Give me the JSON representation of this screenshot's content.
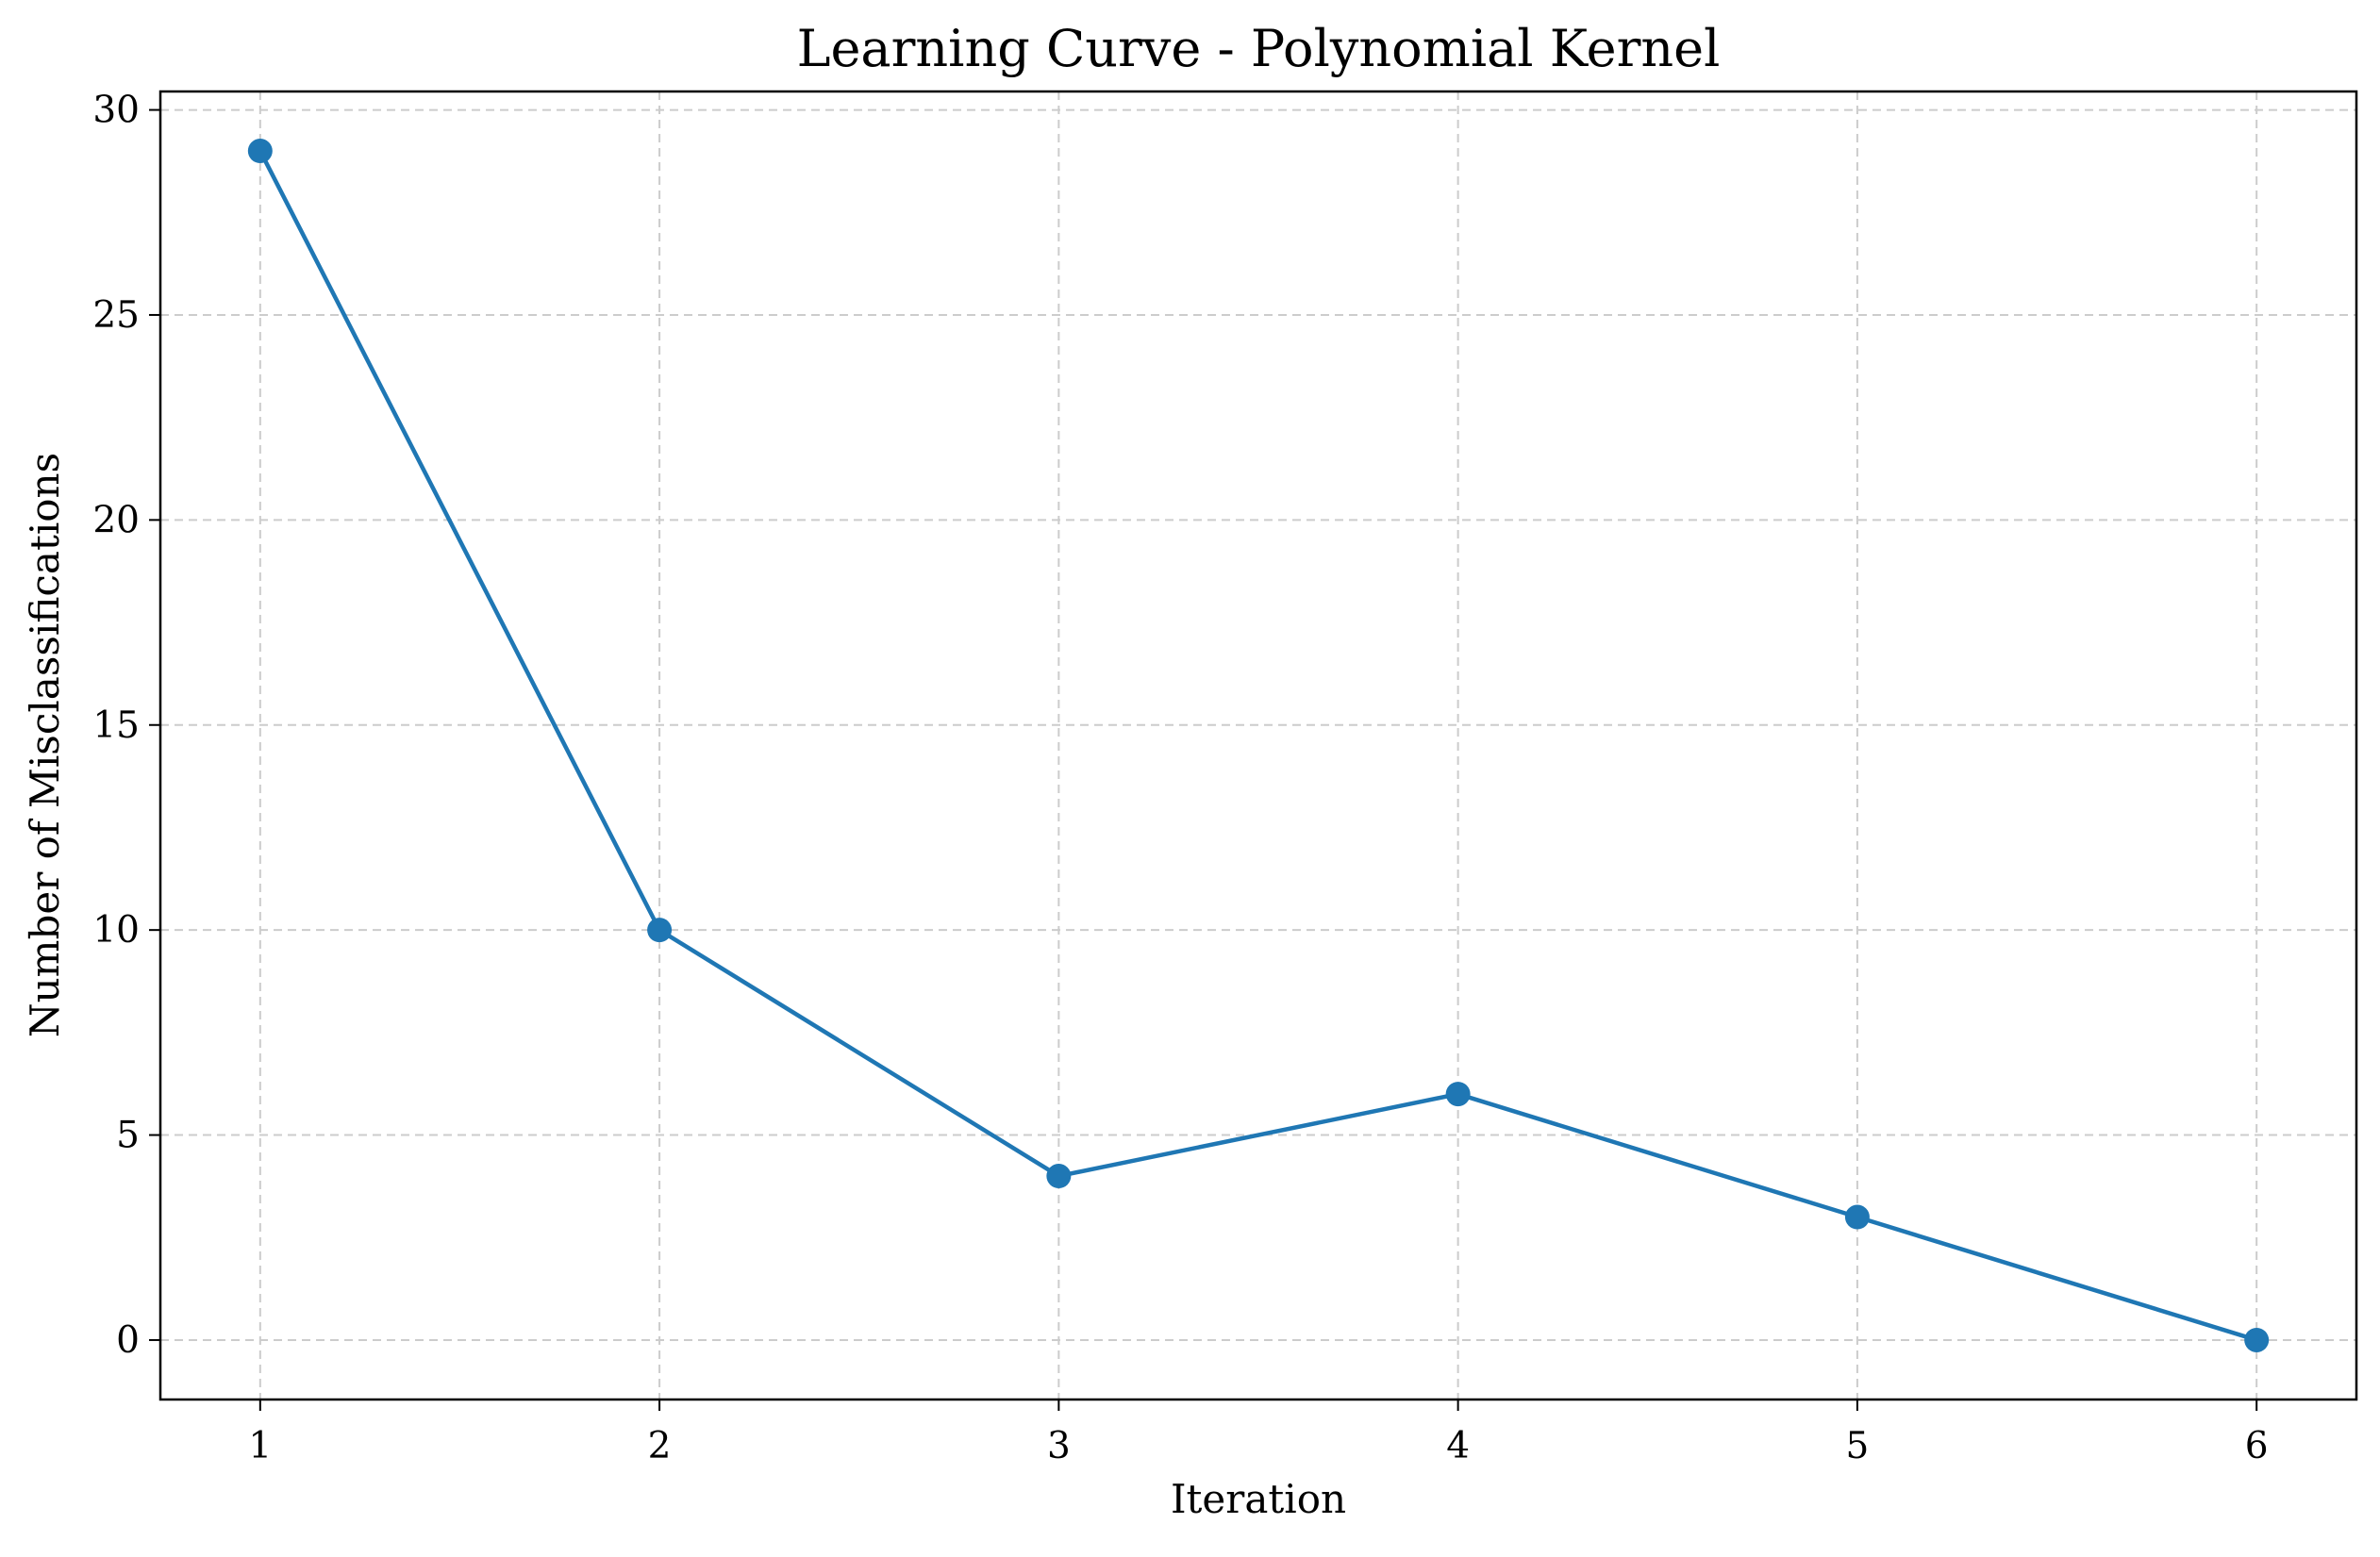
{
  "chart_data": {
    "type": "line",
    "title": "Learning Curve - Polynomial Kernel",
    "xlabel": "Iteration",
    "ylabel": "Number of Misclassifications",
    "x": [
      1,
      2,
      3,
      4,
      5,
      6
    ],
    "series": [
      {
        "values": [
          29,
          10,
          4,
          6,
          3,
          0
        ],
        "color": "#1f77b4",
        "marker": "circle"
      }
    ],
    "xlim": [
      0.75,
      6.25
    ],
    "ylim": [
      -1.45,
      30.45
    ],
    "xticks": [
      "1",
      "2",
      "3",
      "4",
      "5",
      "6"
    ],
    "yticks": [
      "0",
      "5",
      "10",
      "15",
      "20",
      "25",
      "30"
    ],
    "grid": true,
    "grid_style": "dashed",
    "grid_color": "#cccccc"
  }
}
